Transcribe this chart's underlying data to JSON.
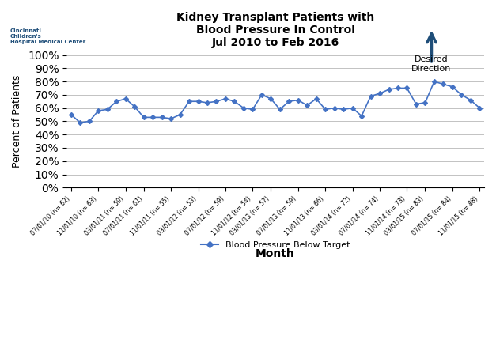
{
  "title_line1": "Kidney Transplant Patients with",
  "title_line2": "Blood Pressure In Control",
  "title_line3": "Jul 2010 to Feb 2016",
  "ylabel": "Percent of Patients",
  "xlabel": "Month",
  "legend_label": "Blood Pressure Below Target",
  "desired_direction_text": "Desired\nDirection",
  "line_color": "#4472C4",
  "background_color": "#FFFFFF",
  "yticks": [
    0,
    10,
    20,
    30,
    40,
    50,
    60,
    70,
    80,
    90,
    100
  ],
  "ylim": [
    0,
    100
  ],
  "x_labels": [
    "07/01/10 (n= 62)",
    "11/01/10 (n= 63)",
    "03/01/11 (n= 59)",
    "07/01/11 (n= 61)",
    "11/01/11 (n= 55)",
    "03/01/12 (n= 53)",
    "07/01/12 (n= 59)",
    "11/01/12 (n= 54)",
    "03/01/13 (n= 57)",
    "07/01/13 (n= 59)",
    "11/01/13 (n= 66)",
    "03/01/14 (n= 72)",
    "07/01/14 (n= 74)",
    "11/01/14 (n= 73)",
    "03/01/15 (n= 83)",
    "07/01/15 (n= 84)",
    "11/01/15 (n= 88)"
  ],
  "values": [
    55,
    49,
    50,
    58,
    59,
    65,
    67,
    61,
    53,
    53,
    53,
    52,
    55,
    65,
    65,
    64,
    65,
    67,
    65,
    60,
    59,
    70,
    67,
    59,
    65,
    66,
    62,
    67,
    59,
    60,
    59,
    60,
    54,
    69,
    71,
    74,
    75,
    75,
    63,
    64,
    80,
    78,
    76,
    70,
    66,
    60
  ],
  "marker_style": "D",
  "marker_size": 3,
  "line_width": 1.2
}
